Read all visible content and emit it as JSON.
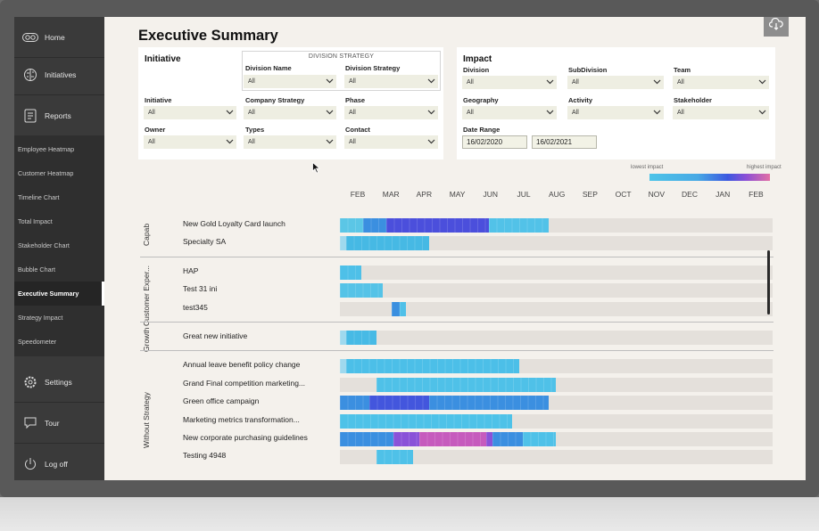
{
  "sidebar": {
    "main": [
      {
        "label": "Home",
        "icon": "home-icon"
      },
      {
        "label": "Initiatives",
        "icon": "brain-icon"
      },
      {
        "label": "Reports",
        "icon": "report-icon"
      }
    ],
    "sub": [
      {
        "label": "Employee Heatmap"
      },
      {
        "label": "Customer Heatmap"
      },
      {
        "label": "Timeline Chart"
      },
      {
        "label": "Total Impact"
      },
      {
        "label": "Stakeholder Chart"
      },
      {
        "label": "Bubble Chart"
      },
      {
        "label": "Executive Summary",
        "active": true
      },
      {
        "label": "Strategy Impact"
      },
      {
        "label": "Speedometer"
      }
    ],
    "bottom": [
      {
        "label": "Settings",
        "icon": "gear-icon"
      },
      {
        "label": "Tour",
        "icon": "chat-icon"
      },
      {
        "label": "Log off",
        "icon": "power-icon"
      }
    ]
  },
  "page": {
    "title": "Executive Summary"
  },
  "initiative_panel": {
    "title": "Initiative",
    "division_strategy_header": "DIVISION STRATEGY",
    "filters": {
      "division_name": {
        "label": "Division Name",
        "value": "All"
      },
      "division_strategy": {
        "label": "Division Strategy",
        "value": "All"
      },
      "initiative": {
        "label": "Initiative",
        "value": "All"
      },
      "company_strategy": {
        "label": "Company Strategy",
        "value": "All"
      },
      "phase": {
        "label": "Phase",
        "value": "All"
      },
      "owner": {
        "label": "Owner",
        "value": "All"
      },
      "types": {
        "label": "Types",
        "value": "All"
      },
      "contact": {
        "label": "Contact",
        "value": "All"
      }
    }
  },
  "impact_panel": {
    "title": "Impact",
    "filters": {
      "division": {
        "label": "Division",
        "value": "All"
      },
      "subdivision": {
        "label": "SubDivision",
        "value": "All"
      },
      "team": {
        "label": "Team",
        "value": "All"
      },
      "geography": {
        "label": "Geography",
        "value": "All"
      },
      "activity": {
        "label": "Activity",
        "value": "All"
      },
      "stakeholder": {
        "label": "Stakeholder",
        "value": "All"
      }
    },
    "date_range": {
      "label": "Date Range",
      "start": "16/02/2020",
      "end": "16/02/2021"
    }
  },
  "legend": {
    "low": "lowest impact",
    "high": "highest impact"
  },
  "chart_data": {
    "type": "heatmap",
    "months": [
      "FEB",
      "MAR",
      "APR",
      "MAY",
      "JUN",
      "JUL",
      "AUG",
      "SEP",
      "OCT",
      "NOV",
      "DEC",
      "JAN",
      "FEB"
    ],
    "groups": [
      {
        "label": "Capab",
        "rows": [
          {
            "name": "New Gold Loyalty Card launch",
            "segments": [
              {
                "start": 0,
                "end": 0.7,
                "color": "#5bc6e6"
              },
              {
                "start": 0.7,
                "end": 1.4,
                "color": "#3b8fe0"
              },
              {
                "start": 1.4,
                "end": 4.5,
                "color": "#4b4fdc"
              },
              {
                "start": 4.5,
                "end": 6.3,
                "color": "#52c2e8"
              }
            ]
          },
          {
            "name": "Specialty SA",
            "segments": [
              {
                "start": 0,
                "end": 0.2,
                "color": "#9fd9ee"
              },
              {
                "start": 0.2,
                "end": 2.7,
                "color": "#46b9e4"
              }
            ]
          }
        ]
      },
      {
        "label": "Customer Exper...",
        "rows": [
          {
            "name": "HAP",
            "segments": [
              {
                "start": 0,
                "end": 0.65,
                "color": "#4ec0e8"
              }
            ]
          },
          {
            "name": "Test 31 ini",
            "segments": [
              {
                "start": 0,
                "end": 1.3,
                "color": "#55c3e7"
              }
            ]
          },
          {
            "name": "test345",
            "segments": [
              {
                "start": 1.55,
                "end": 1.8,
                "color": "#3a8fdf"
              },
              {
                "start": 1.8,
                "end": 2.0,
                "color": "#4fc0e8"
              }
            ]
          }
        ]
      },
      {
        "label": "Growth",
        "rows": [
          {
            "name": "Great new initiative",
            "segments": [
              {
                "start": 0,
                "end": 0.2,
                "color": "#9fd9ee"
              },
              {
                "start": 0.2,
                "end": 1.1,
                "color": "#47bae5"
              }
            ]
          }
        ]
      },
      {
        "label": "Without Strategy",
        "rows": [
          {
            "name": "Annual leave benefit policy change",
            "segments": [
              {
                "start": 0,
                "end": 0.2,
                "color": "#9fd9ee"
              },
              {
                "start": 0.2,
                "end": 5.4,
                "color": "#4cbfe8"
              }
            ]
          },
          {
            "name": "Grand Final competition marketing...",
            "segments": [
              {
                "start": 1.1,
                "end": 6.5,
                "color": "#4fc1e8"
              }
            ]
          },
          {
            "name": "Green office campaign",
            "segments": [
              {
                "start": 0,
                "end": 0.9,
                "color": "#3b8fe0"
              },
              {
                "start": 0.9,
                "end": 2.7,
                "color": "#4356dd"
              },
              {
                "start": 2.7,
                "end": 6.3,
                "color": "#3b8fe0"
              }
            ]
          },
          {
            "name": "Marketing metrics transformation...",
            "segments": [
              {
                "start": 0,
                "end": 5.2,
                "color": "#4ec2e8"
              }
            ]
          },
          {
            "name": "New corporate purchasing guidelines",
            "segments": [
              {
                "start": 0,
                "end": 1.6,
                "color": "#3b8fe0"
              },
              {
                "start": 1.6,
                "end": 2.4,
                "color": "#8a52d8"
              },
              {
                "start": 2.4,
                "end": 4.4,
                "color": "#c65bbd"
              },
              {
                "start": 4.4,
                "end": 4.6,
                "color": "#8a52d8"
              },
              {
                "start": 4.6,
                "end": 5.5,
                "color": "#3b8fe0"
              },
              {
                "start": 5.5,
                "end": 6.5,
                "color": "#4fc1e8"
              }
            ]
          },
          {
            "name": "Testing 4948",
            "segments": [
              {
                "start": 1.1,
                "end": 2.2,
                "color": "#4fc1e8"
              }
            ]
          }
        ]
      }
    ]
  }
}
